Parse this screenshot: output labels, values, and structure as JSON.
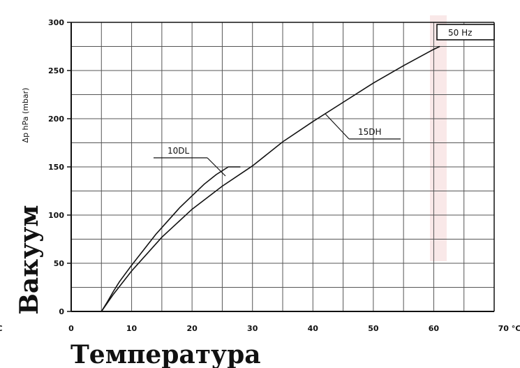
{
  "chart_data": {
    "type": "line",
    "title": "",
    "frequency_label": "50 Hz",
    "ylabel": "Δp hPa (mbar)",
    "xlabel_unit": "°C",
    "left_partial_unit": "°C",
    "big_ylabel": "Вакуум",
    "big_xlabel": "Температура",
    "xlim": [
      0,
      70
    ],
    "ylim": [
      0,
      300
    ],
    "x_ticks": [
      0,
      10,
      20,
      30,
      40,
      50,
      60
    ],
    "x_end_tick": "70 °C",
    "y_ticks": [
      0,
      50,
      100,
      150,
      200,
      250,
      300
    ],
    "grid": true,
    "series": [
      {
        "name": "10DL",
        "x": [
          5,
          6,
          7,
          8,
          10,
          12,
          14,
          16,
          18,
          20,
          22,
          24,
          26,
          28
        ],
        "y": [
          0,
          10,
          21,
          31,
          48,
          64,
          80,
          94,
          108,
          120,
          132,
          142,
          150,
          150
        ]
      },
      {
        "name": "15DH",
        "x": [
          5,
          7,
          10,
          15,
          20,
          25,
          30,
          35,
          40,
          45,
          50,
          55,
          60,
          61
        ],
        "y": [
          0,
          18,
          42,
          77,
          106,
          130,
          151,
          176,
          197,
          217,
          237,
          255,
          272,
          275
        ]
      }
    ],
    "colors": {
      "line": "#111111",
      "grid": "#555555",
      "highlight": "#f6dede"
    }
  }
}
